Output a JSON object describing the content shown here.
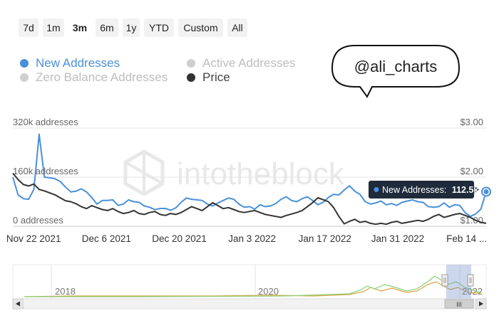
{
  "range_buttons": [
    {
      "label": "7d",
      "active": false
    },
    {
      "label": "1m",
      "active": false
    },
    {
      "label": "3m",
      "active": true
    },
    {
      "label": "6m",
      "active": false
    },
    {
      "label": "1y",
      "active": false
    },
    {
      "label": "YTD",
      "active": false
    },
    {
      "label": "Custom",
      "active": false
    },
    {
      "label": "All",
      "active": false
    }
  ],
  "legend": [
    {
      "label": "New Addresses",
      "color": "#4a90d9",
      "text_color": "#4a90d9",
      "active": true
    },
    {
      "label": "Active Addresses",
      "color": "#cfcfcf",
      "text_color": "#bdbdbd",
      "active": false
    },
    {
      "label": "Zero Balance Addresses",
      "color": "#cfcfcf",
      "text_color": "#bdbdbd",
      "active": false
    },
    {
      "label": "Price",
      "color": "#333333",
      "text_color": "#444444",
      "active": true
    }
  ],
  "bubble": {
    "text": "@ali_charts"
  },
  "watermark": {
    "text": "intotheblock"
  },
  "tooltip": {
    "series": "New Addresses:",
    "value": "112.5k"
  },
  "navigator": {
    "years": [
      "2018",
      "2020",
      "2022"
    ],
    "scroll_handle": "III"
  },
  "chart_data": {
    "type": "line",
    "y_left": {
      "ticks": [
        "320k addresses",
        "160k addresses",
        "0 addresses"
      ],
      "range": [
        0,
        320000
      ]
    },
    "y_right": {
      "ticks": [
        "$3.00",
        "$2.00",
        "$1.00"
      ],
      "range": [
        1.0,
        3.0
      ]
    },
    "x_ticks": [
      "Nov 22 2021",
      "Dec 6 2021",
      "Dec 20 2021",
      "Jan 3 2022",
      "Jan 17 2022",
      "Jan 31 2022",
      "Feb 14 ..."
    ],
    "x_start": "2021-11-18",
    "x_end": "2022-02-17",
    "grid": true,
    "legend_position": "top-left",
    "series": [
      {
        "name": "New Addresses",
        "color": "#4a90d9",
        "axis": "left",
        "values": [
          160000,
          102000,
          90000,
          88000,
          120000,
          300000,
          160000,
          158000,
          155000,
          146000,
          128000,
          112000,
          114000,
          122000,
          112000,
          94000,
          72000,
          84000,
          84000,
          86000,
          68000,
          72000,
          86000,
          80000,
          78000,
          66000,
          62000,
          54000,
          58000,
          58000,
          52000,
          60000,
          78000,
          92000,
          88000,
          86000,
          84000,
          72000,
          66000,
          76000,
          84000,
          92000,
          88000,
          72000,
          62000,
          64000,
          56000,
          70000,
          64000,
          66000,
          74000,
          88000,
          96000,
          84000,
          80000,
          90000,
          96000,
          84000,
          70000,
          78000,
          94000,
          104000,
          102000,
          118000,
          132000,
          114000,
          104000,
          80000,
          72000,
          76000,
          82000,
          70000,
          74000,
          68000,
          78000,
          82000,
          86000,
          80000,
          78000,
          64000,
          62000,
          64000,
          76000,
          62000,
          70000,
          68000,
          44000,
          32000,
          40000,
          56000,
          112500
        ]
      },
      {
        "name": "Price",
        "color": "#333333",
        "axis": "right",
        "values": [
          2.08,
          1.95,
          1.85,
          1.82,
          1.86,
          1.75,
          1.72,
          1.68,
          1.64,
          1.58,
          1.52,
          1.5,
          1.46,
          1.4,
          1.36,
          1.42,
          1.38,
          1.34,
          1.32,
          1.36,
          1.3,
          1.26,
          1.28,
          1.32,
          1.26,
          1.24,
          1.28,
          1.3,
          1.24,
          1.22,
          1.26,
          1.24,
          1.28,
          1.34,
          1.4,
          1.36,
          1.32,
          1.4,
          1.48,
          1.42,
          1.36,
          1.38,
          1.34,
          1.3,
          1.28,
          1.3,
          1.32,
          1.28,
          1.24,
          1.22,
          1.2,
          1.18,
          1.22,
          1.25,
          1.28,
          1.32,
          1.4,
          1.48,
          1.58,
          1.54,
          1.5,
          1.38,
          1.2,
          1.05,
          1.1,
          1.14,
          1.08,
          1.1,
          1.06,
          1.04,
          1.06,
          1.04,
          1.08,
          1.1,
          1.06,
          1.08,
          1.1,
          1.12,
          1.1,
          1.14,
          1.2,
          1.24,
          1.18,
          1.21,
          1.24,
          1.26,
          1.22,
          1.18,
          1.12,
          1.08,
          1.06
        ]
      }
    ]
  }
}
